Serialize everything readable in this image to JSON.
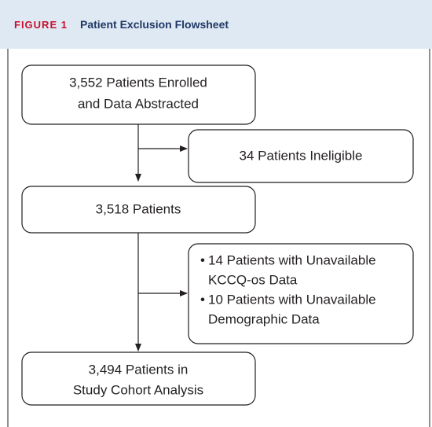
{
  "header": {
    "figure_label": "FIGURE 1",
    "title": "Patient Exclusion Flowsheet"
  },
  "nodes": [
    {
      "lines": [
        "3,552 Patients Enrolled",
        "and Data Abstracted"
      ]
    },
    {
      "lines": [
        "34 Patients Ineligible"
      ]
    },
    {
      "lines": [
        "3,518 Patients"
      ]
    },
    {
      "items": [
        {
          "lines": [
            "14 Patients with Unavailable",
            "KCCQ-os Data"
          ]
        },
        {
          "lines": [
            "10 Patients with Unavailable",
            "Demographic Data"
          ]
        }
      ]
    },
    {
      "lines": [
        "3,494 Patients in",
        "Study Cohort Analysis"
      ]
    }
  ]
}
